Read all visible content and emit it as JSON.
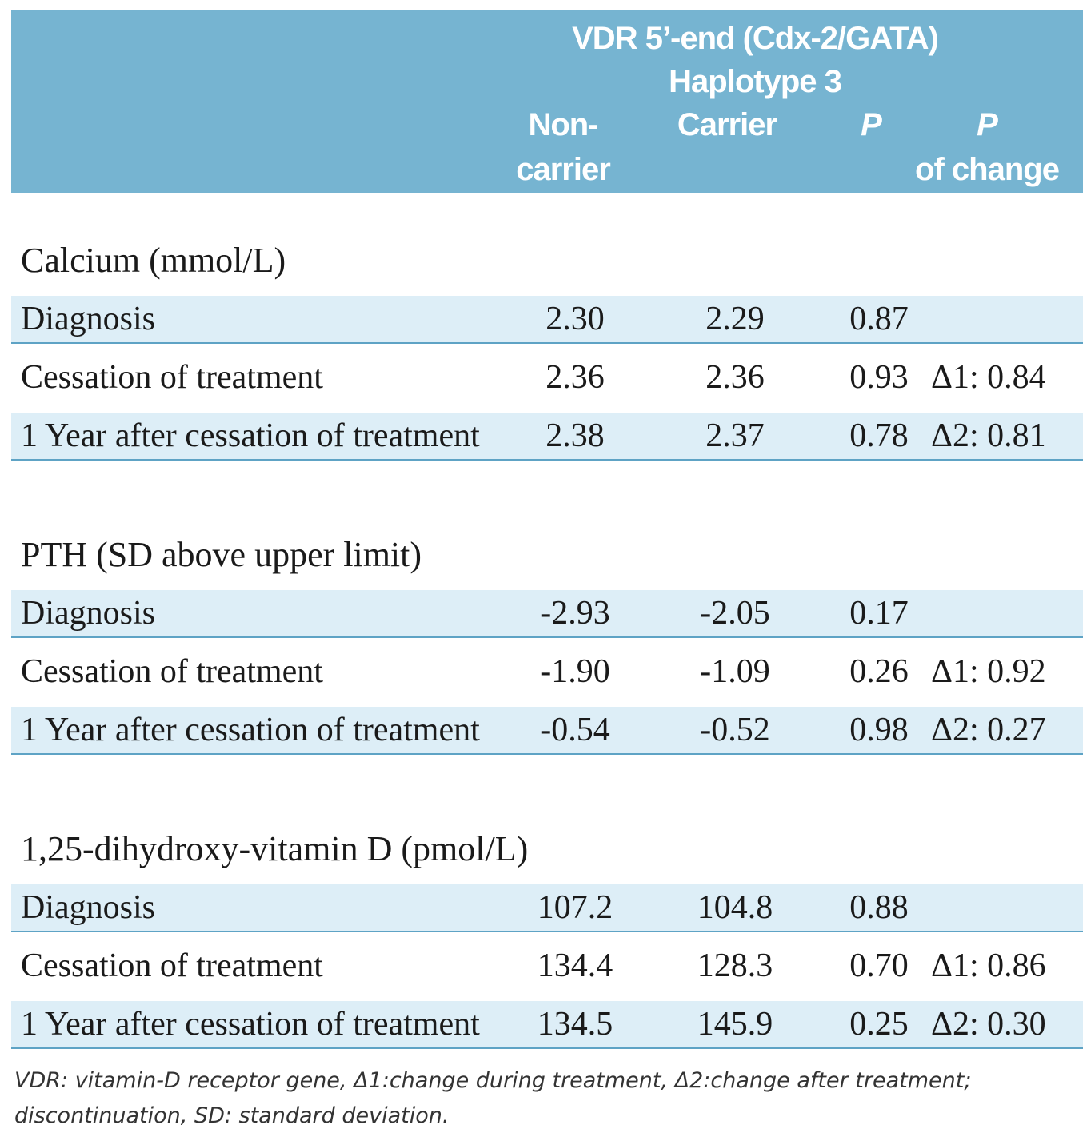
{
  "header": {
    "gene_title": "VDR 5’-end (Cdx-2/GATA)",
    "haplotype": "Haplotype 3",
    "col_noncarrier_1": "Non-",
    "col_noncarrier_2": "carrier",
    "col_carrier": "Carrier",
    "col_p": "P",
    "col_p_change_1": "P",
    "col_p_change_2": "of change"
  },
  "sections": [
    {
      "title": "Calcium  (mmol/L)",
      "rows": [
        {
          "label": "Diagnosis",
          "noncarrier": "2.30",
          "carrier": "2.29",
          "p": "0.87",
          "p_change": ""
        },
        {
          "label": "Cessation of treatment",
          "noncarrier": "2.36",
          "carrier": "2.36",
          "p": "0.93",
          "p_change": "Δ1: 0.84"
        },
        {
          "label": "1 Year after cessation of treatment",
          "noncarrier": "2.38",
          "carrier": "2.37",
          "p": "0.78",
          "p_change": "Δ2: 0.81"
        }
      ]
    },
    {
      "title": "PTH (SD above upper limit)",
      "rows": [
        {
          "label": "Diagnosis",
          "noncarrier": "-2.93",
          "carrier": "-2.05",
          "p": "0.17",
          "p_change": ""
        },
        {
          "label": "Cessation of treatment",
          "noncarrier": "-1.90",
          "carrier": "-1.09",
          "p": "0.26",
          "p_change": "Δ1: 0.92"
        },
        {
          "label": "1 Year after cessation of treatment",
          "noncarrier": "-0.54",
          "carrier": "-0.52",
          "p": "0.98",
          "p_change": "Δ2: 0.27"
        }
      ]
    },
    {
      "title": "1,25-dihydroxy-vitamin D (pmol/L)",
      "rows": [
        {
          "label": "Diagnosis",
          "noncarrier": "107.2",
          "carrier": "104.8",
          "p": "0.88",
          "p_change": ""
        },
        {
          "label": "Cessation of treatment",
          "noncarrier": "134.4",
          "carrier": "128.3",
          "p": "0.70",
          "p_change": "Δ1: 0.86"
        },
        {
          "label": "1 Year after cessation of treatment",
          "noncarrier": "134.5",
          "carrier": "145.9",
          "p": "0.25",
          "p_change": "Δ2: 0.30"
        }
      ]
    }
  ],
  "footnote": "VDR: vitamin-D receptor gene, Δ1:change during treatment, Δ2:change after treatment; discontinuation, SD: standard deviation."
}
